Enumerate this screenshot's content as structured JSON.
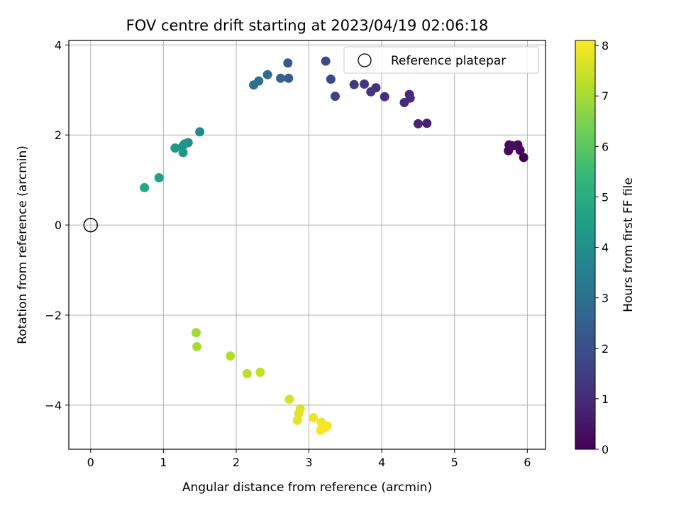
{
  "chart_data": {
    "type": "scatter",
    "title": "FOV centre drift starting at 2023/04/19 02:06:18",
    "xlabel": "Angular distance from reference (arcmin)",
    "ylabel": "Rotation from reference (arcmin)",
    "xlim": [
      -0.3,
      6.25
    ],
    "ylim": [
      -4.98,
      4.1
    ],
    "xticks": [
      0,
      1,
      2,
      3,
      4,
      5,
      6
    ],
    "xtick_labels": [
      "0",
      "1",
      "2",
      "3",
      "4",
      "5",
      "6"
    ],
    "yticks": [
      -4,
      -2,
      0,
      2,
      4
    ],
    "ytick_labels": [
      "−4",
      "−2",
      "0",
      "2",
      "4"
    ],
    "grid": true,
    "legend": {
      "position": "top-right",
      "entries": [
        "Reference platepar"
      ]
    },
    "reference_point": {
      "x": 0,
      "y": 0,
      "label": "Reference platepar"
    },
    "colorbar": {
      "label": "Hours from first FF file",
      "colormap": "viridis",
      "range": [
        0,
        8.1
      ],
      "ticks": [
        0,
        1,
        2,
        3,
        4,
        5,
        6,
        7,
        8
      ],
      "tick_labels": [
        "0",
        "1",
        "2",
        "3",
        "4",
        "5",
        "6",
        "7",
        "8"
      ]
    },
    "colormap_stops": [
      "#440154",
      "#482878",
      "#3e4989",
      "#31688e",
      "#26828e",
      "#1f9e89",
      "#35b779",
      "#6ece58",
      "#b5de2b",
      "#fde725"
    ],
    "points": [
      {
        "x": 5.95,
        "y": 1.5,
        "t": 0.0
      },
      {
        "x": 5.9,
        "y": 1.66,
        "t": 0.1
      },
      {
        "x": 5.74,
        "y": 1.65,
        "t": 0.15
      },
      {
        "x": 5.75,
        "y": 1.78,
        "t": 0.2
      },
      {
        "x": 5.87,
        "y": 1.78,
        "t": 0.25
      },
      {
        "x": 5.8,
        "y": 1.76,
        "t": 0.3
      },
      {
        "x": 4.62,
        "y": 2.26,
        "t": 0.7
      },
      {
        "x": 4.5,
        "y": 2.25,
        "t": 0.8
      },
      {
        "x": 4.31,
        "y": 2.72,
        "t": 0.9
      },
      {
        "x": 4.39,
        "y": 2.82,
        "t": 0.95
      },
      {
        "x": 4.38,
        "y": 2.9,
        "t": 1.0
      },
      {
        "x": 4.04,
        "y": 2.85,
        "t": 1.1
      },
      {
        "x": 3.92,
        "y": 3.05,
        "t": 1.2
      },
      {
        "x": 3.85,
        "y": 2.96,
        "t": 1.25
      },
      {
        "x": 3.76,
        "y": 3.13,
        "t": 1.3
      },
      {
        "x": 3.62,
        "y": 3.12,
        "t": 1.4
      },
      {
        "x": 3.36,
        "y": 2.86,
        "t": 1.6
      },
      {
        "x": 3.3,
        "y": 3.24,
        "t": 1.7
      },
      {
        "x": 3.23,
        "y": 3.64,
        "t": 1.8
      },
      {
        "x": 2.71,
        "y": 3.6,
        "t": 2.2
      },
      {
        "x": 2.72,
        "y": 3.26,
        "t": 2.4
      },
      {
        "x": 2.61,
        "y": 3.26,
        "t": 2.5
      },
      {
        "x": 2.43,
        "y": 3.34,
        "t": 2.8
      },
      {
        "x": 2.31,
        "y": 3.2,
        "t": 2.9
      },
      {
        "x": 2.24,
        "y": 3.11,
        "t": 3.0
      },
      {
        "x": 1.5,
        "y": 2.07,
        "t": 3.8
      },
      {
        "x": 1.34,
        "y": 1.83,
        "t": 4.0
      },
      {
        "x": 1.29,
        "y": 1.8,
        "t": 4.1
      },
      {
        "x": 1.26,
        "y": 1.74,
        "t": 4.2
      },
      {
        "x": 1.27,
        "y": 1.61,
        "t": 4.25
      },
      {
        "x": 1.16,
        "y": 1.71,
        "t": 4.3
      },
      {
        "x": 0.94,
        "y": 1.05,
        "t": 4.6
      },
      {
        "x": 0.74,
        "y": 0.83,
        "t": 4.8
      },
      {
        "x": 1.45,
        "y": -2.39,
        "t": 7.0
      },
      {
        "x": 1.46,
        "y": -2.7,
        "t": 7.05
      },
      {
        "x": 1.92,
        "y": -2.91,
        "t": 7.2
      },
      {
        "x": 2.15,
        "y": -3.3,
        "t": 7.3
      },
      {
        "x": 2.33,
        "y": -3.27,
        "t": 7.35
      },
      {
        "x": 2.73,
        "y": -3.87,
        "t": 7.6
      },
      {
        "x": 2.88,
        "y": -4.08,
        "t": 7.7
      },
      {
        "x": 2.86,
        "y": -4.19,
        "t": 7.75
      },
      {
        "x": 2.84,
        "y": -4.34,
        "t": 7.8
      },
      {
        "x": 3.06,
        "y": -4.28,
        "t": 7.9
      },
      {
        "x": 3.17,
        "y": -4.38,
        "t": 7.95
      },
      {
        "x": 3.25,
        "y": -4.46,
        "t": 8.0
      },
      {
        "x": 3.21,
        "y": -4.5,
        "t": 8.02
      },
      {
        "x": 3.16,
        "y": -4.56,
        "t": 8.05
      }
    ]
  }
}
